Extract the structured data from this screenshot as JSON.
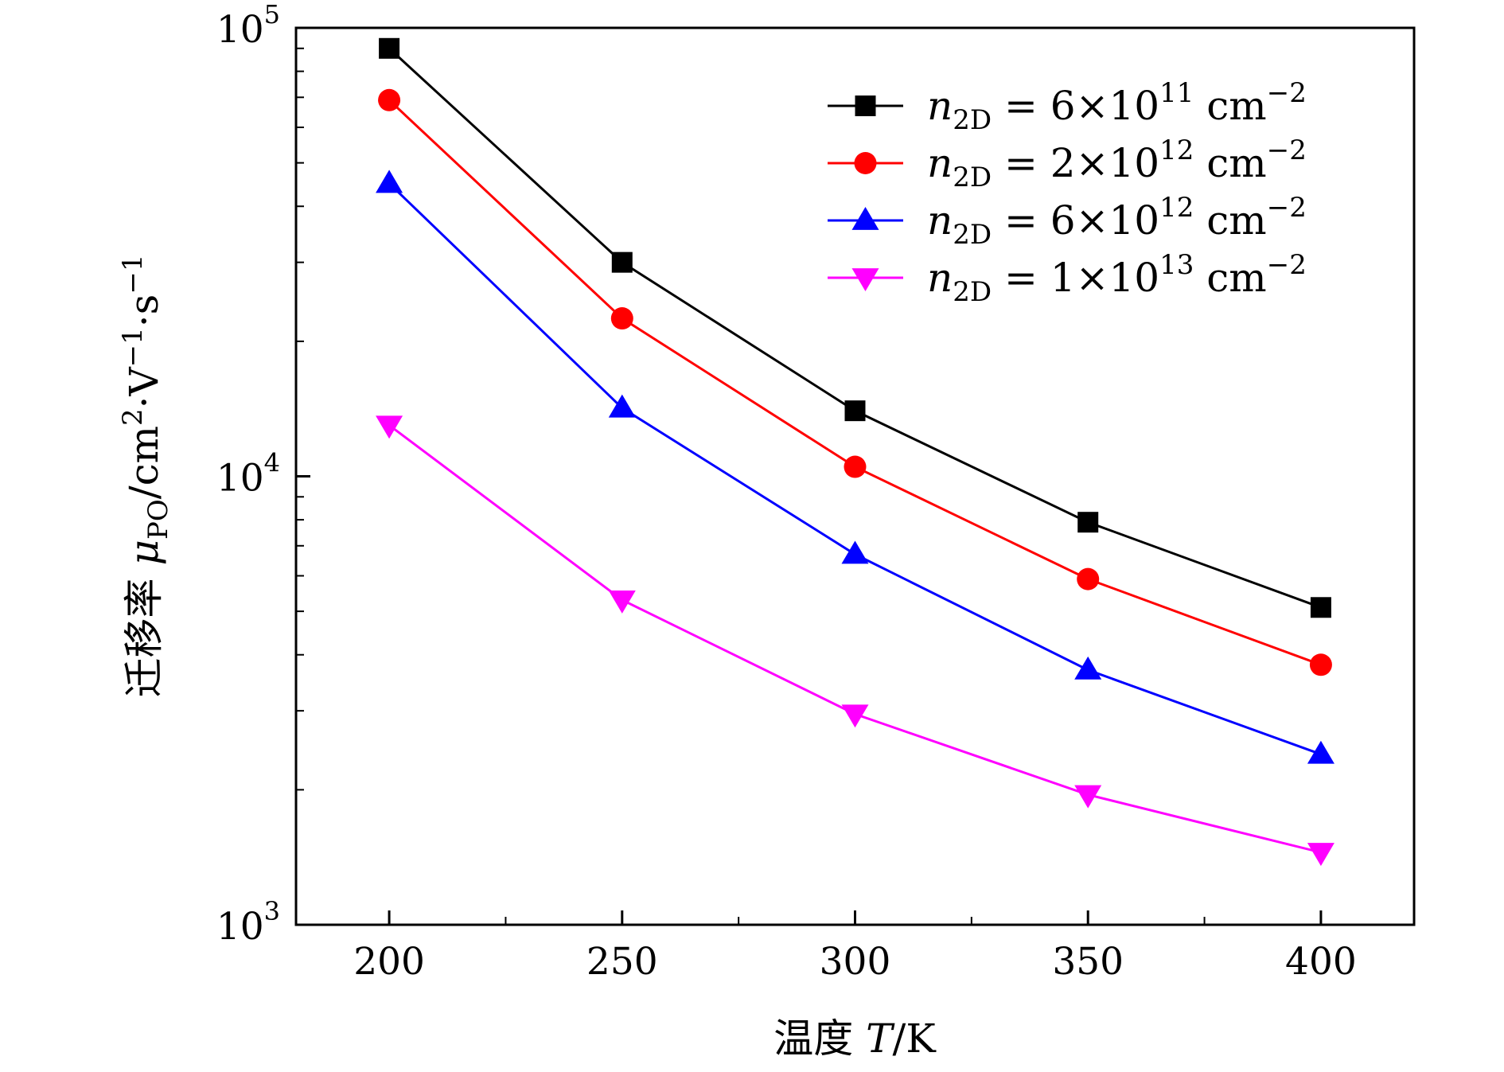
{
  "chart_data": {
    "type": "line",
    "x_axis": {
      "label_prefix": "温度 ",
      "label_var": "T",
      "label_unit": "/K",
      "range": [
        180,
        420
      ],
      "ticks": [
        200,
        250,
        300,
        350,
        400
      ],
      "tick_labels": [
        "200",
        "250",
        "300",
        "350",
        "400"
      ],
      "minor_ticks": [
        225,
        275,
        325,
        375
      ]
    },
    "y_axis": {
      "scale": "log",
      "range": [
        1000,
        100000
      ],
      "label_prefix": "迁移率 ",
      "label_var": "μ",
      "label_sub": "PO",
      "label_unit": "/cm",
      "label_unit_sup": "2",
      "label_unit_rest": "·V",
      "label_unit_rest_sup": "−1",
      "label_unit_tail": "·s",
      "label_unit_tail_sup": "−1",
      "major_ticks": [
        1000,
        10000,
        100000
      ],
      "tick_label_base": "10",
      "tick_label_exponents": [
        "3",
        "4",
        "5"
      ]
    },
    "x": [
      200,
      250,
      300,
      350,
      400
    ],
    "series": [
      {
        "name": "n2D = 6×10^11 cm^−2",
        "legend": {
          "var": "n",
          "sub": "2D",
          "eq": " = 6×10",
          "exp": "11",
          "unit": " cm",
          "unit_exp": "−2"
        },
        "color": "#000000",
        "marker": "square",
        "values": [
          90000,
          30000,
          14000,
          7900,
          5100
        ]
      },
      {
        "name": "n2D = 2×10^12 cm^−2",
        "legend": {
          "var": "n",
          "sub": "2D",
          "eq": " = 2×10",
          "exp": "12",
          "unit": " cm",
          "unit_exp": "−2"
        },
        "color": "#ff0000",
        "marker": "circle",
        "values": [
          69000,
          22500,
          10500,
          5900,
          3800
        ]
      },
      {
        "name": "n2D = 6×10^12 cm^−2",
        "legend": {
          "var": "n",
          "sub": "2D",
          "eq": " = 6×10",
          "exp": "12",
          "unit": " cm",
          "unit_exp": "−2"
        },
        "color": "#0000ff",
        "marker": "triangle-up",
        "values": [
          45000,
          14200,
          6700,
          3700,
          2400
        ]
      },
      {
        "name": "n2D = 1×10^13 cm^−2",
        "legend": {
          "var": "n",
          "sub": "2D",
          "eq": " = 1×10",
          "exp": "13",
          "unit": " cm",
          "unit_exp": "−2"
        },
        "color": "#ff00ff",
        "marker": "triangle-down",
        "values": [
          13000,
          5300,
          2950,
          1950,
          1450
        ]
      }
    ],
    "legend_position": "top-right",
    "grid": false
  }
}
